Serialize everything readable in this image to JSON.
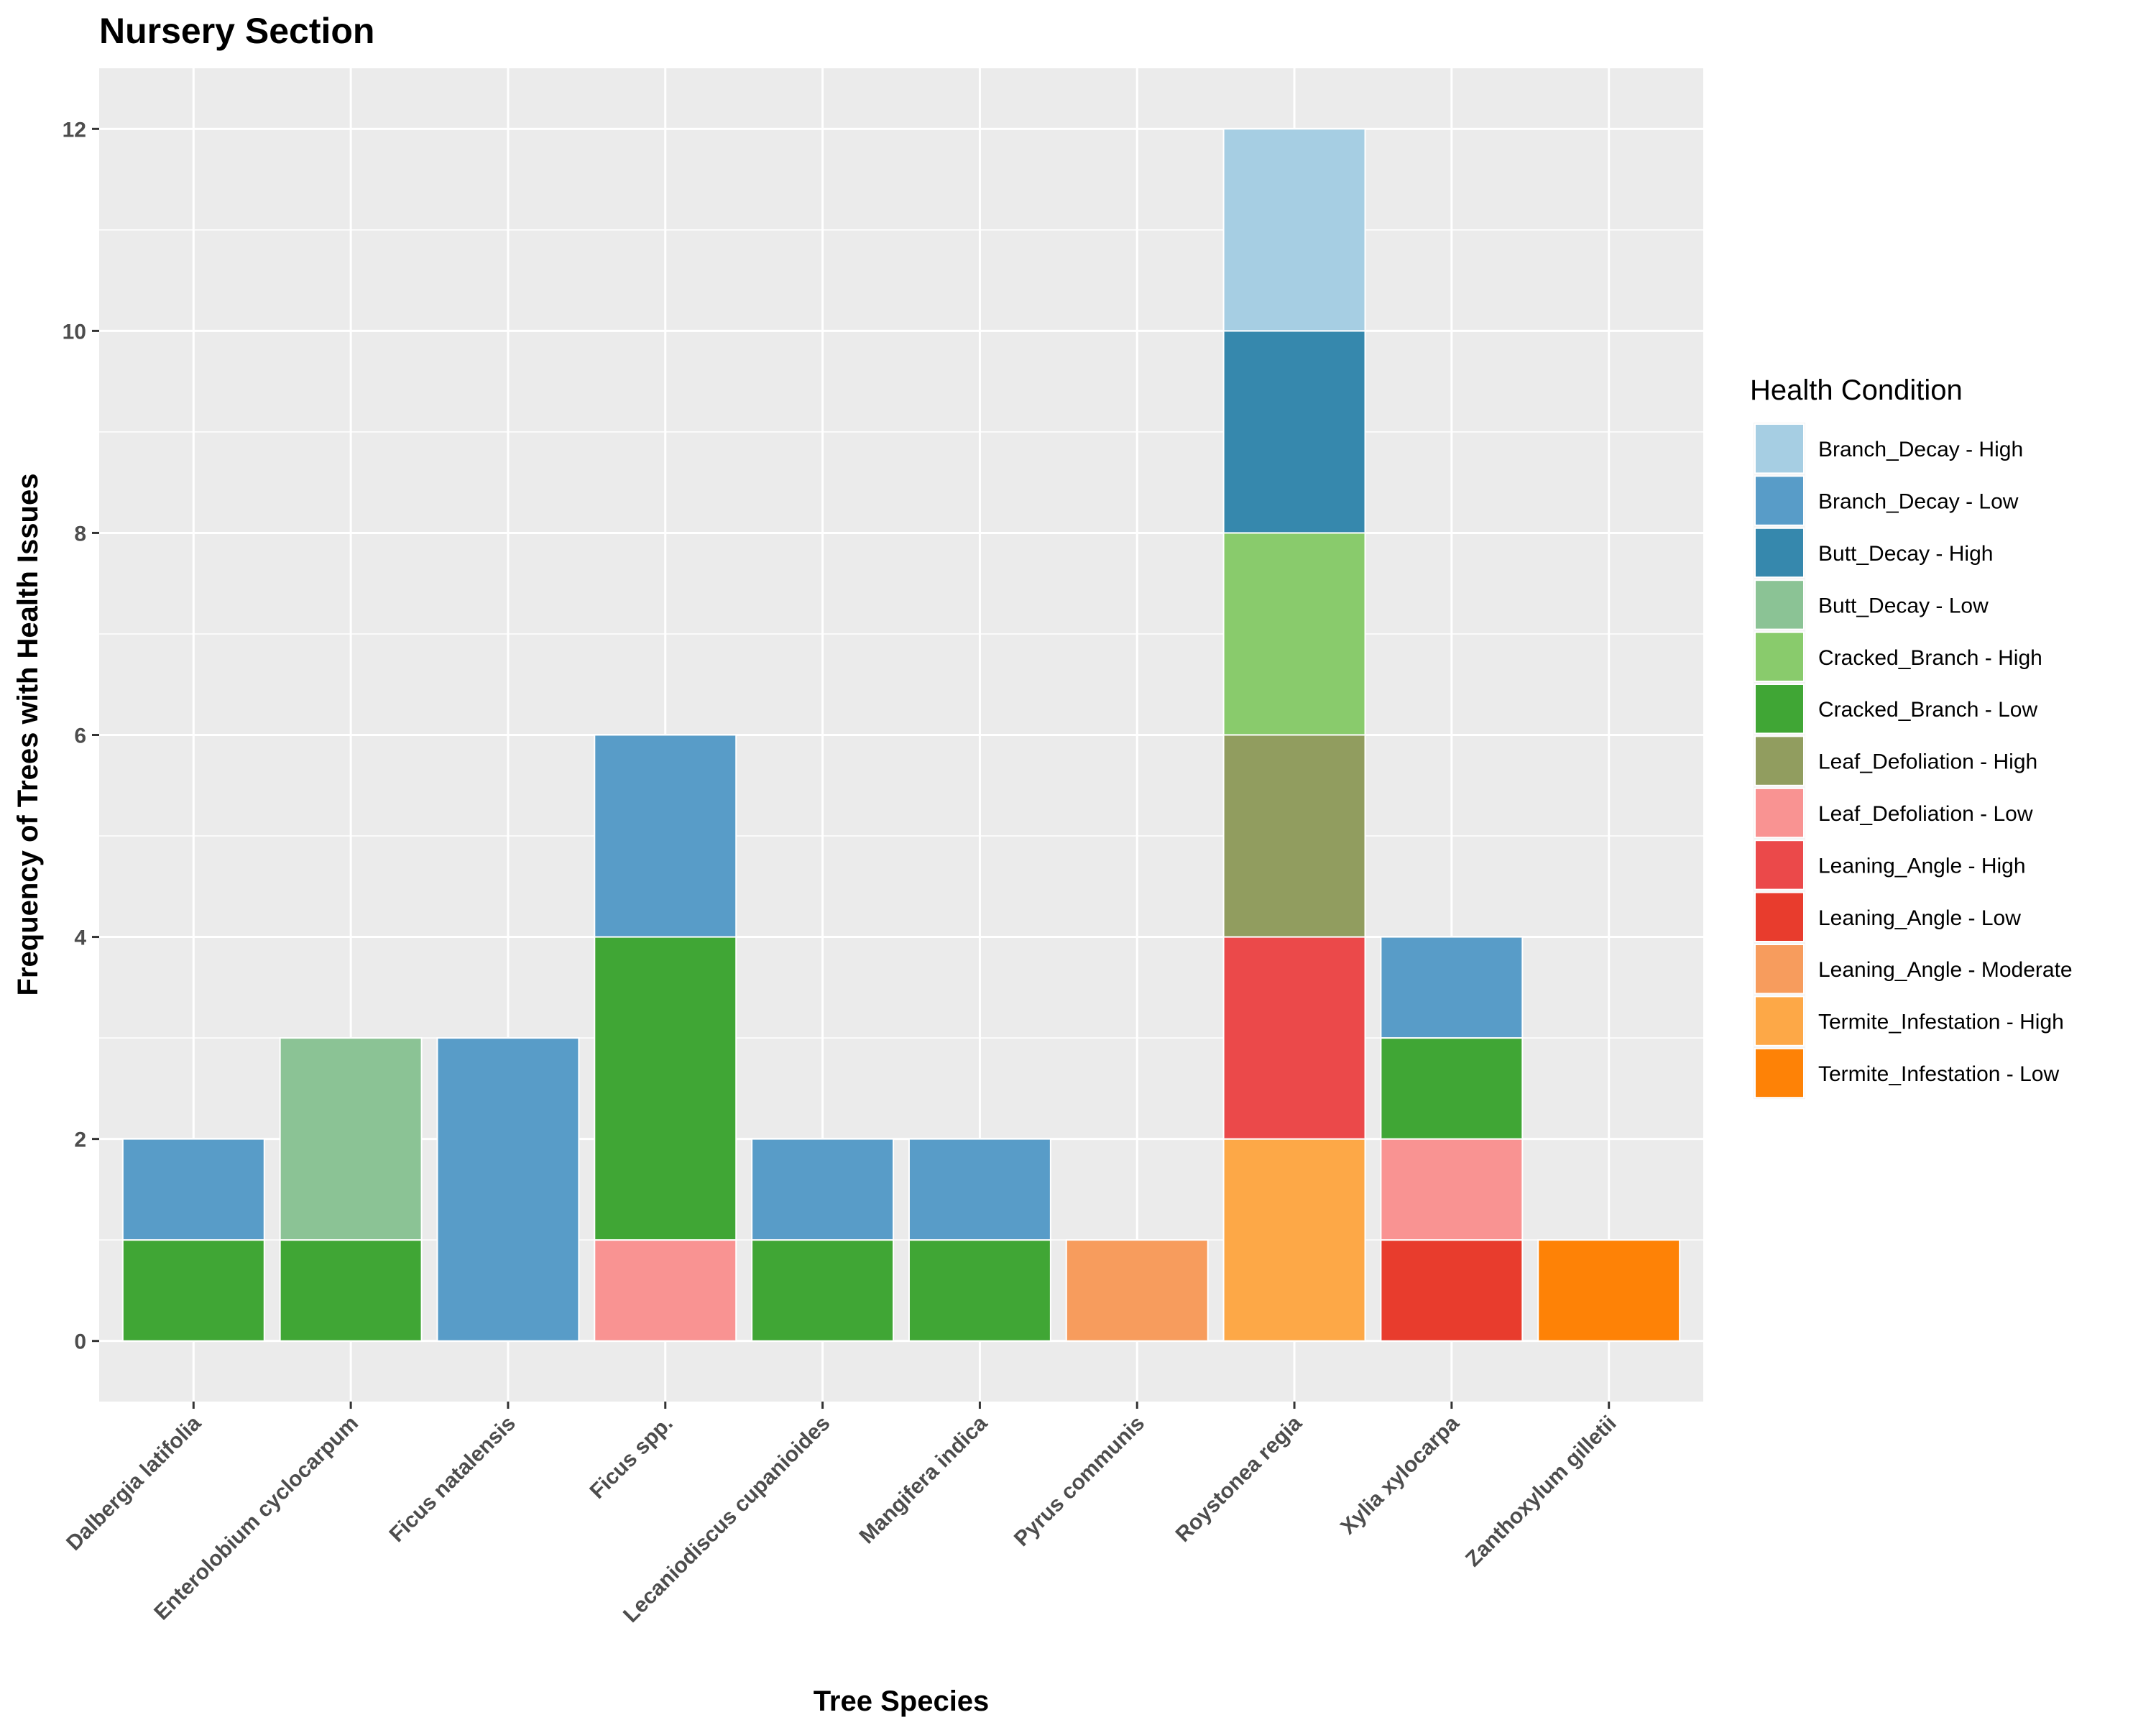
{
  "chart_data": {
    "type": "bar",
    "stacked": true,
    "title": "Nursery Section",
    "xlabel": "Tree Species",
    "ylabel": "Frequency of Trees with Health Issues",
    "ylim": [
      -0.6,
      12.6
    ],
    "yticks": [
      0,
      2,
      4,
      6,
      8,
      10,
      12
    ],
    "grid": true,
    "legend_title": "Health Condition",
    "legend_position": "right",
    "categories": [
      "Dalbergia latifolia",
      "Enterolobium cyclocarpum",
      "Ficus natalensis",
      "Ficus spp.",
      "Lecaniodiscus cupanioides",
      "Mangifera indica",
      "Pyrus communis",
      "Roystonea regia",
      "Xylia xylocarpa",
      "Zanthoxylum gilletii"
    ],
    "series": [
      {
        "name": "Branch_Decay - High",
        "color": "#a6cee3",
        "values": [
          0,
          0,
          0,
          0,
          0,
          0,
          0,
          2,
          0,
          0
        ]
      },
      {
        "name": "Branch_Decay - Low",
        "color": "#589cc8",
        "values": [
          1,
          0,
          3,
          2,
          1,
          1,
          0,
          0,
          1,
          0
        ]
      },
      {
        "name": "Butt_Decay - High",
        "color": "#3688ad",
        "values": [
          0,
          0,
          0,
          0,
          0,
          0,
          0,
          2,
          0,
          0
        ]
      },
      {
        "name": "Butt_Decay - Low",
        "color": "#8bc395",
        "values": [
          0,
          2,
          0,
          0,
          0,
          0,
          0,
          0,
          0,
          0
        ]
      },
      {
        "name": "Cracked_Branch - High",
        "color": "#89cb6c",
        "values": [
          0,
          0,
          0,
          0,
          0,
          0,
          0,
          2,
          0,
          0
        ]
      },
      {
        "name": "Cracked_Branch - Low",
        "color": "#40a635",
        "values": [
          1,
          1,
          0,
          3,
          1,
          1,
          0,
          0,
          1,
          0
        ]
      },
      {
        "name": "Leaf_Defoliation - High",
        "color": "#919d5f",
        "values": [
          0,
          0,
          0,
          0,
          0,
          0,
          0,
          2,
          0,
          0
        ]
      },
      {
        "name": "Leaf_Defoliation - Low",
        "color": "#f99392",
        "values": [
          0,
          0,
          0,
          1,
          0,
          0,
          0,
          0,
          1,
          0
        ]
      },
      {
        "name": "Leaning_Angle - High",
        "color": "#eb494a",
        "values": [
          0,
          0,
          0,
          0,
          0,
          0,
          0,
          2,
          0,
          0
        ]
      },
      {
        "name": "Leaning_Angle - Low",
        "color": "#e83c2d",
        "values": [
          0,
          0,
          0,
          0,
          0,
          0,
          0,
          0,
          1,
          0
        ]
      },
      {
        "name": "Leaning_Angle - Moderate",
        "color": "#f79c5d",
        "values": [
          0,
          0,
          0,
          0,
          0,
          0,
          1,
          0,
          0,
          0
        ]
      },
      {
        "name": "Termite_Infestation - High",
        "color": "#fda847",
        "values": [
          0,
          0,
          0,
          0,
          0,
          0,
          0,
          2,
          0,
          0
        ]
      },
      {
        "name": "Termite_Infestation - Low",
        "color": "#fe8206",
        "values": [
          0,
          0,
          0,
          0,
          0,
          0,
          0,
          0,
          0,
          1
        ]
      }
    ]
  }
}
